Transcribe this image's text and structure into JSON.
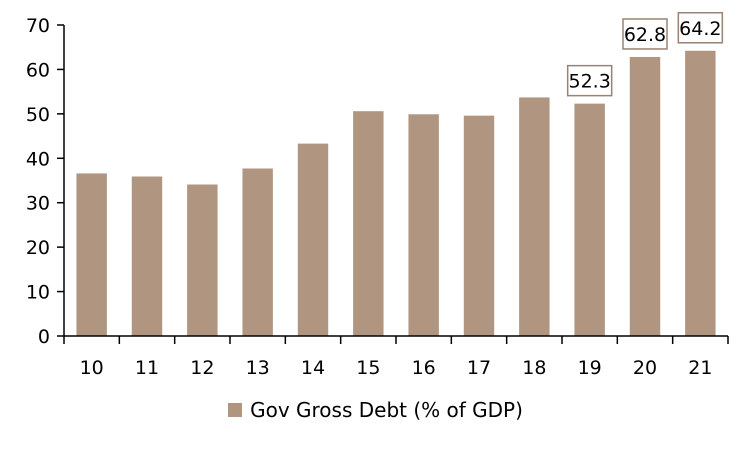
{
  "chart_data": {
    "type": "bar",
    "categories": [
      "10",
      "11",
      "12",
      "13",
      "14",
      "15",
      "16",
      "17",
      "18",
      "19",
      "20",
      "21"
    ],
    "series": [
      {
        "name": "Gov Gross Debt (% of GDP)",
        "values": [
          36.6,
          35.9,
          34.1,
          37.7,
          43.3,
          50.6,
          49.9,
          49.6,
          53.7,
          52.3,
          62.8,
          64.2
        ],
        "color": "#b09580"
      }
    ],
    "data_labels": [
      {
        "category": "19",
        "text": "52.3"
      },
      {
        "category": "20",
        "text": "62.8"
      },
      {
        "category": "21",
        "text": "64.2"
      }
    ],
    "y_ticks": [
      "0",
      "10",
      "20",
      "30",
      "40",
      "50",
      "60",
      "70"
    ],
    "ylim": [
      0,
      70
    ],
    "grid": false,
    "legend_position": "bottom-center",
    "label_box_border_color": "#9b8373"
  }
}
